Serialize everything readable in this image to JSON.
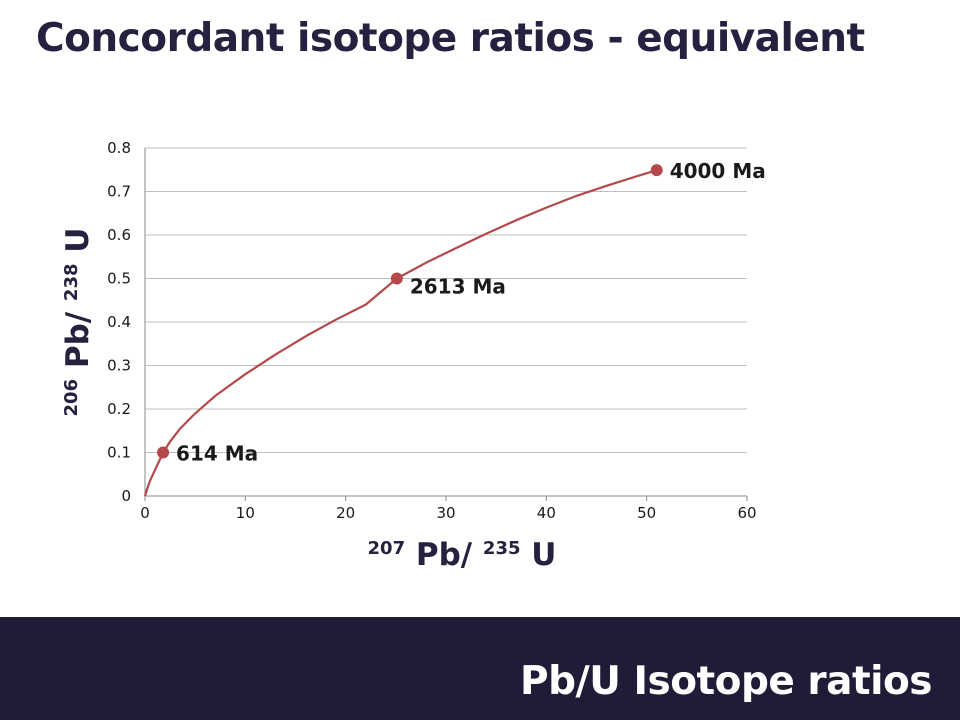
{
  "slide": {
    "title": "Concordant isotope ratios - equivalent",
    "footer": "Pb/U Isotope ratios"
  },
  "colors": {
    "title": "#25213f",
    "footer_bg": "#201c38",
    "footer_text": "#ffffff",
    "curve": "#b5484a",
    "grid": "#bfbfbf",
    "axis": "#888888"
  },
  "chart_data": {
    "type": "line",
    "title": "",
    "xlabel": {
      "sup1": "207",
      "base1": "Pb/",
      "sup2": "235",
      "base2": "U"
    },
    "ylabel": {
      "sup1": "206",
      "base1": "Pb/",
      "sup2": "238",
      "base2": "U"
    },
    "xlim": [
      0,
      60
    ],
    "ylim": [
      0,
      0.8
    ],
    "xticks": [
      "0",
      "10",
      "20",
      "30",
      "40",
      "50",
      "60"
    ],
    "yticks": [
      "0",
      "0.1",
      "0.2",
      "0.3",
      "0.4",
      "0.5",
      "0.6",
      "0.7",
      "0.8"
    ],
    "grid": "horizontal",
    "series": [
      {
        "x": [
          0,
          0.2,
          0.5,
          1,
          1.5,
          1.8,
          2.5,
          3.5,
          5,
          7,
          10,
          13,
          16,
          19,
          22,
          25.1,
          28,
          31,
          34,
          37,
          40,
          43,
          46,
          49,
          51
        ],
        "y": [
          0,
          0.015,
          0.035,
          0.06,
          0.085,
          0.1,
          0.125,
          0.155,
          0.19,
          0.23,
          0.28,
          0.325,
          0.367,
          0.405,
          0.44,
          0.5,
          0.536,
          0.57,
          0.603,
          0.634,
          0.663,
          0.69,
          0.713,
          0.735,
          0.749
        ]
      }
    ],
    "points": [
      {
        "x": 1.8,
        "y": 0.1,
        "label": "614 Ma"
      },
      {
        "x": 25.1,
        "y": 0.5,
        "label": "2613 Ma"
      },
      {
        "x": 51,
        "y": 0.749,
        "label": "4000 Ma"
      }
    ]
  }
}
